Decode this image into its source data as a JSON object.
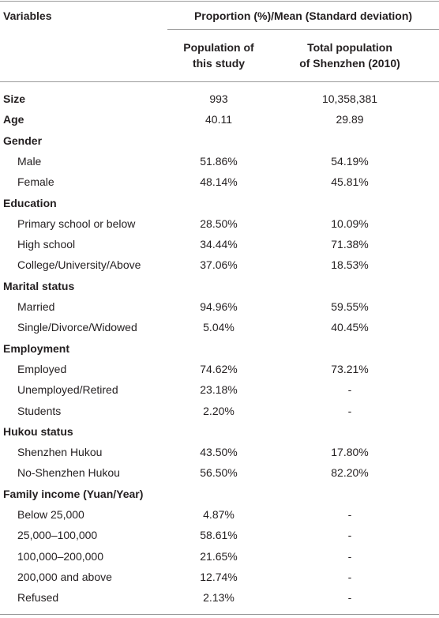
{
  "table": {
    "header": {
      "variables": "Variables",
      "group": "Proportion (%)/Mean (Standard deviation)",
      "columns": [
        [
          "Population of",
          "this study"
        ],
        [
          "Total population",
          "of Shenzhen (2010)"
        ]
      ]
    },
    "rows": [
      {
        "label": "Size",
        "heading": true,
        "values": [
          "993",
          "10,358,381"
        ]
      },
      {
        "label": "Age",
        "heading": true,
        "values": [
          "40.11",
          "29.89"
        ]
      },
      {
        "label": "Gender",
        "heading": true
      },
      {
        "label": "Male",
        "values": [
          "51.86%",
          "54.19%"
        ]
      },
      {
        "label": "Female",
        "values": [
          "48.14%",
          "45.81%"
        ]
      },
      {
        "label": "Education",
        "heading": true
      },
      {
        "label": "Primary school or below",
        "values": [
          "28.50%",
          "10.09%"
        ]
      },
      {
        "label": "High school",
        "values": [
          "34.44%",
          "71.38%"
        ]
      },
      {
        "label": "College/University/Above",
        "values": [
          "37.06%",
          "18.53%"
        ]
      },
      {
        "label": "Marital status",
        "heading": true
      },
      {
        "label": "Married",
        "values": [
          "94.96%",
          "59.55%"
        ]
      },
      {
        "label": "Single/Divorce/Widowed",
        "values": [
          "5.04%",
          "40.45%"
        ]
      },
      {
        "label": "Employment",
        "heading": true
      },
      {
        "label": "Employed",
        "values": [
          "74.62%",
          "73.21%"
        ]
      },
      {
        "label": "Unemployed/Retired",
        "values": [
          "23.18%",
          "-"
        ]
      },
      {
        "label": "Students",
        "values": [
          "2.20%",
          "-"
        ]
      },
      {
        "label": "Hukou status",
        "heading": true
      },
      {
        "label": "Shenzhen Hukou",
        "values": [
          "43.50%",
          "17.80%"
        ]
      },
      {
        "label": "No-Shenzhen Hukou",
        "values": [
          "56.50%",
          "82.20%"
        ]
      },
      {
        "label": "Family income (Yuan/Year)",
        "heading": true
      },
      {
        "label": "Below 25,000",
        "values": [
          "4.87%",
          "-"
        ]
      },
      {
        "label": "25,000–100,000",
        "values": [
          "58.61%",
          "-"
        ]
      },
      {
        "label": "100,000–200,000",
        "values": [
          "21.65%",
          "-"
        ]
      },
      {
        "label": "200,000 and above",
        "values": [
          "12.74%",
          "-"
        ]
      },
      {
        "label": "Refused",
        "values": [
          "2.13%",
          "-"
        ]
      }
    ]
  }
}
